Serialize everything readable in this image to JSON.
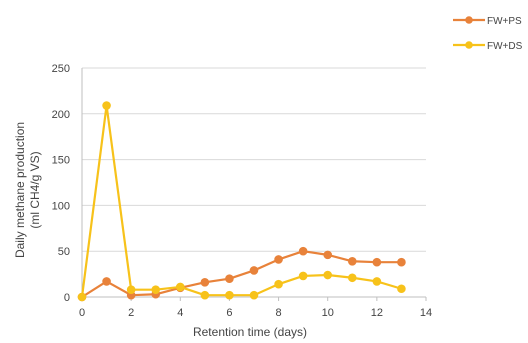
{
  "chart_data": {
    "type": "line",
    "xlabel": "Retention time (days)",
    "ylabel_line1": "Daily methane production",
    "ylabel_line2": "(ml CH4/g VS)",
    "xlim": [
      0,
      14
    ],
    "ylim": [
      0,
      250
    ],
    "x_ticks": [
      0,
      2,
      4,
      6,
      8,
      10,
      12,
      14
    ],
    "y_ticks": [
      0,
      50,
      100,
      150,
      200,
      250
    ],
    "grid": "horizontal",
    "legend_position": "top-right",
    "series": [
      {
        "name": "FW+PS",
        "color": "#E8823A",
        "x": [
          0,
          1,
          2,
          3,
          4,
          5,
          6,
          7,
          8,
          9,
          10,
          11,
          12,
          13
        ],
        "values": [
          0,
          17,
          2,
          3,
          10,
          16,
          20,
          29,
          41,
          50,
          46,
          39,
          38,
          38
        ]
      },
      {
        "name": "FW+DS",
        "color": "#F7C21A",
        "x": [
          0,
          1,
          2,
          3,
          4,
          5,
          6,
          7,
          8,
          9,
          10,
          11,
          12,
          13
        ],
        "values": [
          0,
          209,
          8,
          8,
          11,
          2,
          2,
          2,
          14,
          23,
          24,
          21,
          17,
          9
        ]
      }
    ]
  }
}
